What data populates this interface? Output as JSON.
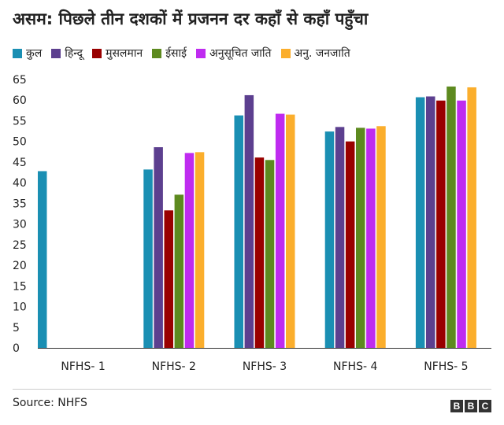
{
  "title": "असम: पिछले तीन दशकों में प्रजनन दर कहाँ से कहाँ पहुँचा",
  "source": "Source: NHFS",
  "logo": [
    "B",
    "B",
    "C"
  ],
  "chart_data": {
    "type": "bar",
    "categories": [
      "NFHS- 1",
      "NFHS- 2",
      "NFHS- 3",
      "NFHS- 4",
      "NFHS- 5"
    ],
    "ylim": [
      0,
      65
    ],
    "yticks": [
      0,
      5,
      10,
      15,
      20,
      25,
      30,
      35,
      40,
      45,
      50,
      55,
      60,
      65
    ],
    "grid": false,
    "legend_position": "top",
    "series": [
      {
        "name": "कुल",
        "color": "#1a8fb3",
        "values": [
          42.8,
          43.2,
          56.3,
          52.4,
          60.7
        ]
      },
      {
        "name": "हिन्दू",
        "color": "#5c3f8f",
        "values": [
          null,
          48.6,
          61.2,
          53.5,
          60.9
        ]
      },
      {
        "name": "मुसलमान",
        "color": "#990000",
        "values": [
          null,
          33.3,
          46.1,
          50.0,
          59.9
        ]
      },
      {
        "name": "ईसाई",
        "color": "#5d8a1f",
        "values": [
          null,
          37.1,
          45.5,
          53.3,
          63.3
        ]
      },
      {
        "name": "अनुसूचित जाति",
        "color": "#bf2bf0",
        "values": [
          null,
          47.2,
          56.7,
          53.1,
          59.9
        ]
      },
      {
        "name": "अनु. जनजाति",
        "color": "#fbae2c",
        "values": [
          null,
          47.4,
          56.5,
          53.7,
          63.1
        ]
      }
    ]
  }
}
